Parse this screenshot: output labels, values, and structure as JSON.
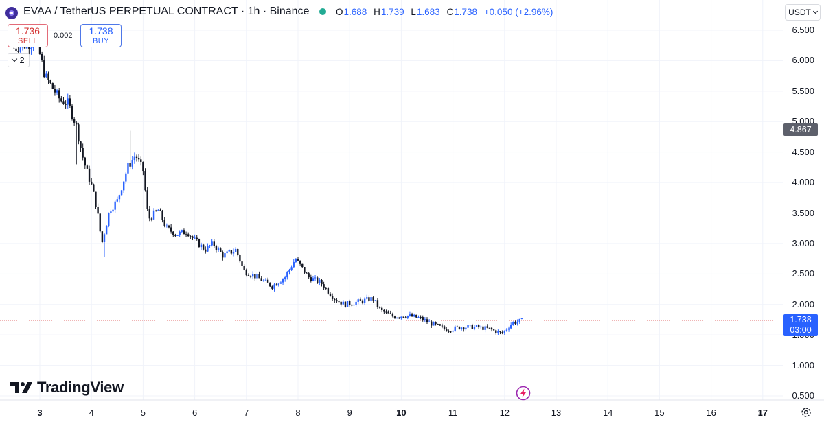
{
  "header": {
    "title": "EVAA / TetherUS PERPETUAL CONTRACT · 1h · Binance",
    "ohlc": {
      "o_key": "O",
      "o": "1.688",
      "h_key": "H",
      "h": "1.739",
      "l_key": "L",
      "l": "1.683",
      "c_key": "C",
      "c": "1.738",
      "change": "+0.050 (+2.96%)"
    },
    "status_color": "#22ab94"
  },
  "trade": {
    "sell_price": "1.736",
    "sell_label": "SELL",
    "spread": "0.002",
    "buy_price": "1.738",
    "buy_label": "BUY",
    "sell_color": "#d32f2f",
    "buy_color": "#2962ff"
  },
  "indicators_toggle": {
    "count": "2",
    "icon": "chevron-down-icon"
  },
  "currency": {
    "label": "USDT",
    "icon": "chevron-down-icon"
  },
  "price_tags": {
    "hover_price": "4.867",
    "last_price": "1.738",
    "countdown": "03:00",
    "last_color": "#2962ff"
  },
  "branding": {
    "name": "TradingView"
  },
  "icons": {
    "settings": "gear-icon",
    "event": "lightning-icon"
  },
  "chart_data": {
    "type": "candlestick",
    "y_ticks": [
      "6.500",
      "6.000",
      "5.500",
      "5.000",
      "4.500",
      "4.000",
      "3.500",
      "3.000",
      "2.500",
      "2.000",
      "1.500",
      "1.000",
      "0.500"
    ],
    "x_ticks": [
      "3",
      "4",
      "5",
      "6",
      "7",
      "8",
      "9",
      "10",
      "11",
      "12",
      "13",
      "14",
      "15",
      "16",
      "17"
    ],
    "ylim": [
      0.5,
      6.5
    ],
    "xlim_days": [
      2.4,
      17.5
    ],
    "grid": true,
    "up_color": "#2962ff",
    "down_color": "#131722",
    "last_price_line": 1.738,
    "close_path": [
      [
        2.5,
        6.2
      ],
      [
        2.9,
        6.3
      ],
      [
        3.0,
        6.1
      ],
      [
        3.1,
        5.75
      ],
      [
        3.25,
        5.55
      ],
      [
        3.4,
        5.35
      ],
      [
        3.55,
        5.3
      ],
      [
        3.7,
        4.95
      ],
      [
        3.85,
        4.35
      ],
      [
        4.0,
        3.95
      ],
      [
        4.1,
        3.6
      ],
      [
        4.2,
        3.0
      ],
      [
        4.35,
        3.55
      ],
      [
        4.5,
        3.7
      ],
      [
        4.7,
        4.25
      ],
      [
        4.85,
        4.45
      ],
      [
        5.0,
        4.2
      ],
      [
        5.1,
        3.4
      ],
      [
        5.3,
        3.55
      ],
      [
        5.45,
        3.25
      ],
      [
        5.65,
        3.15
      ],
      [
        5.85,
        3.2
      ],
      [
        6.0,
        3.05
      ],
      [
        6.2,
        2.9
      ],
      [
        6.35,
        3.0
      ],
      [
        6.55,
        2.8
      ],
      [
        6.8,
        2.9
      ],
      [
        6.95,
        2.55
      ],
      [
        7.2,
        2.45
      ],
      [
        7.5,
        2.3
      ],
      [
        7.75,
        2.45
      ],
      [
        7.95,
        2.75
      ],
      [
        8.2,
        2.45
      ],
      [
        8.45,
        2.35
      ],
      [
        8.7,
        2.1
      ],
      [
        8.9,
        2.0
      ],
      [
        9.2,
        2.05
      ],
      [
        9.45,
        2.1
      ],
      [
        9.6,
        1.9
      ],
      [
        9.85,
        1.8
      ],
      [
        10.1,
        1.82
      ],
      [
        10.35,
        1.78
      ],
      [
        10.6,
        1.68
      ],
      [
        10.9,
        1.58
      ],
      [
        11.15,
        1.63
      ],
      [
        11.45,
        1.63
      ],
      [
        11.7,
        1.6
      ],
      [
        11.95,
        1.52
      ],
      [
        12.15,
        1.7
      ],
      [
        12.35,
        1.738
      ]
    ]
  }
}
